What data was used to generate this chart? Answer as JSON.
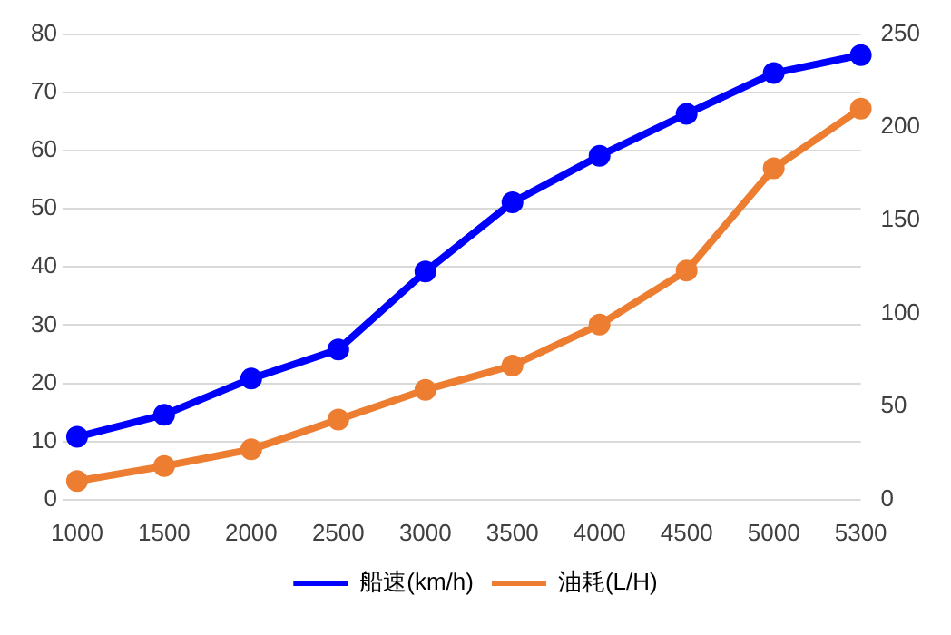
{
  "chart_data": {
    "type": "line",
    "categories": [
      "1000",
      "1500",
      "2000",
      "2500",
      "3000",
      "3500",
      "4000",
      "4500",
      "5000",
      "5300"
    ],
    "series": [
      {
        "name": "船速(km/h)",
        "color": "#0000ff",
        "values": [
          10.8,
          14.6,
          20.8,
          25.8,
          39.2,
          51.1,
          59.1,
          66.3,
          73.3,
          76.4
        ]
      },
      {
        "name": "油耗(L/H)",
        "color": "#ed7d31",
        "axis": "y2",
        "values": [
          10,
          18,
          27,
          43,
          59,
          72,
          94,
          123,
          178,
          210
        ]
      }
    ],
    "ylim": [
      0,
      80
    ],
    "yticks": [
      0,
      10,
      20,
      30,
      40,
      50,
      60,
      70,
      80
    ],
    "y2lim": [
      0,
      250
    ],
    "y2ticks": [
      0,
      50,
      100,
      150,
      200,
      250
    ],
    "grid": "y",
    "legend": "bottom",
    "marker": "circle",
    "line_style": "solid"
  }
}
